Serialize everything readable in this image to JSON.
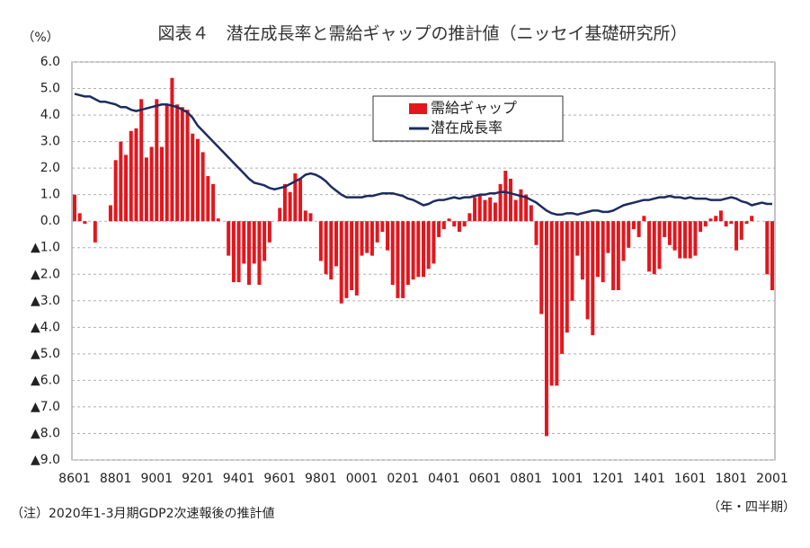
{
  "chart_data": {
    "type": "bar",
    "title": "図表４　潜在成長率と需給ギャップの推計値（ニッセイ基礎研究所）",
    "y_label": "（%）",
    "x_label": "（年・四半期）",
    "note": "（注）2020年1-3月期GDP2次速報後の推計値",
    "grid": true,
    "ylim": [
      -9,
      6
    ],
    "yticks": [
      {
        "value": 6,
        "label": "6.0"
      },
      {
        "value": 5,
        "label": "5.0"
      },
      {
        "value": 4,
        "label": "4.0"
      },
      {
        "value": 3,
        "label": "3.0"
      },
      {
        "value": 2,
        "label": "2.0"
      },
      {
        "value": 1,
        "label": "1.0"
      },
      {
        "value": 0,
        "label": "0.0"
      },
      {
        "value": -1,
        "label": "▲1.0"
      },
      {
        "value": -2,
        "label": "▲2.0"
      },
      {
        "value": -3,
        "label": "▲3.0"
      },
      {
        "value": -4,
        "label": "▲4.0"
      },
      {
        "value": -5,
        "label": "▲5.0"
      },
      {
        "value": -6,
        "label": "▲6.0"
      },
      {
        "value": -7,
        "label": "▲7.0"
      },
      {
        "value": -8,
        "label": "▲8.0"
      },
      {
        "value": -9,
        "label": "▲9.0"
      }
    ],
    "categories": [
      "8601",
      null,
      null,
      null,
      null,
      null,
      null,
      null,
      "8801",
      null,
      null,
      null,
      null,
      null,
      null,
      null,
      "9001",
      null,
      null,
      null,
      null,
      null,
      null,
      null,
      "9201",
      null,
      null,
      null,
      null,
      null,
      null,
      null,
      "9401",
      null,
      null,
      null,
      null,
      null,
      null,
      null,
      "9601",
      null,
      null,
      null,
      null,
      null,
      null,
      null,
      "9801",
      null,
      null,
      null,
      null,
      null,
      null,
      null,
      "0001",
      null,
      null,
      null,
      null,
      null,
      null,
      null,
      "0201",
      null,
      null,
      null,
      null,
      null,
      null,
      null,
      "0401",
      null,
      null,
      null,
      null,
      null,
      null,
      null,
      "0601",
      null,
      null,
      null,
      null,
      null,
      null,
      null,
      "0801",
      null,
      null,
      null,
      null,
      null,
      null,
      null,
      "1001",
      null,
      null,
      null,
      null,
      null,
      null,
      null,
      "1201",
      null,
      null,
      null,
      null,
      null,
      null,
      null,
      "1401",
      null,
      null,
      null,
      null,
      null,
      null,
      null,
      "1601",
      null,
      null,
      null,
      null,
      null,
      null,
      null,
      "1801",
      null,
      null,
      null,
      null,
      null,
      null,
      null,
      "2001"
    ],
    "series": [
      {
        "name": "需給ギャップ",
        "type": "bar",
        "color": "#e3161d",
        "values": [
          1.0,
          0.3,
          -0.1,
          0.0,
          -0.8,
          0.0,
          0.0,
          0.6,
          2.3,
          3.0,
          2.5,
          3.4,
          3.5,
          4.6,
          2.4,
          2.8,
          4.6,
          2.8,
          4.4,
          5.4,
          4.4,
          4.3,
          4.2,
          3.3,
          3.1,
          2.6,
          1.7,
          1.4,
          0.1,
          0.0,
          -1.3,
          -2.3,
          -2.3,
          -1.6,
          -2.4,
          -1.6,
          -2.4,
          -1.5,
          -0.8,
          0.0,
          0.5,
          1.4,
          1.1,
          1.8,
          1.6,
          0.4,
          0.3,
          0.0,
          -1.5,
          -2.0,
          -2.2,
          -1.7,
          -3.1,
          -2.9,
          -2.6,
          -2.8,
          -1.3,
          -1.2,
          -1.3,
          -0.8,
          -0.4,
          -1.1,
          -2.4,
          -2.9,
          -2.9,
          -2.4,
          -2.2,
          -2.1,
          -2.1,
          -1.8,
          -1.6,
          -0.6,
          -0.3,
          0.1,
          -0.2,
          -0.4,
          -0.2,
          0.3,
          0.9,
          1.0,
          0.8,
          0.9,
          0.7,
          1.4,
          1.9,
          1.6,
          0.8,
          1.2,
          1.0,
          0.6,
          -0.9,
          -3.5,
          -8.1,
          -6.2,
          -6.2,
          -5.0,
          -4.2,
          -3.0,
          -1.3,
          -2.2,
          -3.7,
          -4.3,
          -2.1,
          -2.3,
          -1.2,
          -2.6,
          -2.6,
          -1.5,
          -1.0,
          -0.3,
          -0.6,
          0.2,
          -1.9,
          -2.0,
          -1.8,
          -0.6,
          -0.9,
          -1.1,
          -1.4,
          -1.4,
          -1.4,
          -1.3,
          -0.4,
          -0.2,
          0.1,
          0.2,
          0.4,
          -0.2,
          -0.1,
          -1.1,
          -0.7,
          -0.1,
          0.2,
          0.0,
          0.0,
          -2.0,
          -2.6
        ]
      },
      {
        "name": "潜在成長率",
        "type": "line",
        "color": "#1c2c5e",
        "values": [
          4.8,
          4.75,
          4.7,
          4.7,
          4.6,
          4.5,
          4.5,
          4.45,
          4.4,
          4.3,
          4.3,
          4.2,
          4.15,
          4.2,
          4.25,
          4.3,
          4.35,
          4.4,
          4.4,
          4.35,
          4.3,
          4.2,
          4.1,
          3.9,
          3.6,
          3.4,
          3.2,
          3.0,
          2.8,
          2.6,
          2.4,
          2.2,
          2.0,
          1.8,
          1.6,
          1.45,
          1.4,
          1.35,
          1.25,
          1.2,
          1.25,
          1.3,
          1.4,
          1.5,
          1.6,
          1.75,
          1.8,
          1.75,
          1.65,
          1.5,
          1.3,
          1.15,
          1.0,
          0.9,
          0.9,
          0.9,
          0.9,
          0.95,
          0.95,
          1.0,
          1.05,
          1.05,
          1.05,
          1.0,
          0.95,
          0.85,
          0.8,
          0.7,
          0.6,
          0.65,
          0.75,
          0.8,
          0.8,
          0.85,
          0.9,
          0.85,
          0.9,
          0.9,
          0.95,
          1.0,
          1.0,
          1.05,
          1.05,
          1.1,
          1.1,
          1.05,
          1.0,
          0.95,
          0.9,
          0.8,
          0.7,
          0.55,
          0.4,
          0.3,
          0.25,
          0.25,
          0.3,
          0.3,
          0.25,
          0.3,
          0.35,
          0.4,
          0.4,
          0.35,
          0.35,
          0.4,
          0.5,
          0.6,
          0.65,
          0.7,
          0.75,
          0.8,
          0.8,
          0.85,
          0.9,
          0.9,
          0.95,
          0.9,
          0.9,
          0.85,
          0.9,
          0.85,
          0.85,
          0.85,
          0.8,
          0.8,
          0.8,
          0.85,
          0.9,
          0.85,
          0.75,
          0.7,
          0.6,
          0.65,
          0.7,
          0.65,
          0.65
        ]
      }
    ]
  }
}
